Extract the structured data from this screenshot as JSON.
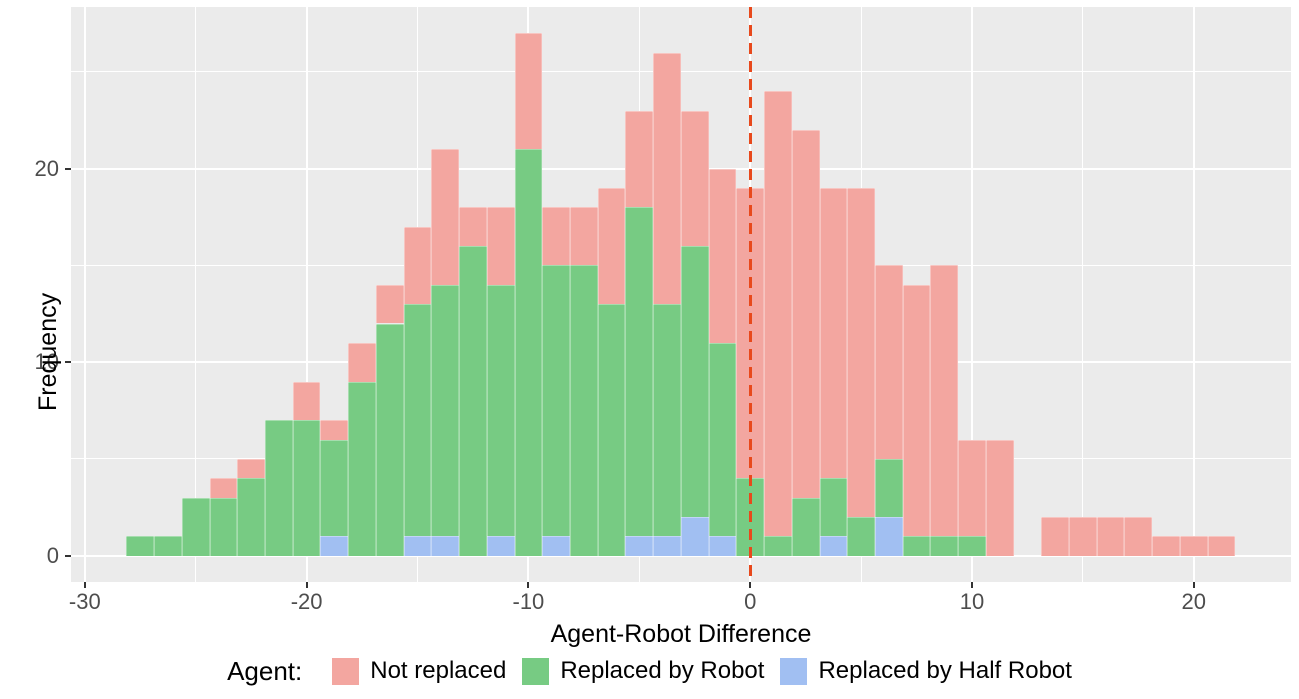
{
  "chart_data": {
    "type": "bar",
    "subtype": "stacked-histogram",
    "xlabel": "Agent-Robot Difference",
    "ylabel": "Frequency",
    "x_ticks": [
      -30,
      -20,
      -10,
      0,
      10,
      20
    ],
    "x_minor_ticks": [
      -25,
      -15,
      -5,
      5,
      15
    ],
    "y_ticks": [
      0,
      10,
      20
    ],
    "y_minor_ticks": [
      5,
      15,
      25
    ],
    "xlim": [
      -30.6,
      24.4
    ],
    "ylim": [
      -1.35,
      28.35
    ],
    "bin_width": 1.25,
    "grid": true,
    "legend_position": "bottom",
    "reference_line": {
      "x": 0,
      "style": "dashed",
      "color": "#E8491C"
    },
    "legend": {
      "title": "Agent:",
      "entries": [
        {
          "key": "not_replaced",
          "label": "Not replaced",
          "color": "#F3A6A0"
        },
        {
          "key": "robot",
          "label": "Replaced by Robot",
          "color": "#77CB83"
        },
        {
          "key": "half_robot",
          "label": "Replaced by Half Robot",
          "color": "#A1BFF2"
        }
      ]
    },
    "stack_order_bottom_to_top": [
      "half_robot",
      "robot",
      "not_replaced"
    ],
    "bins": [
      {
        "center": -27.5,
        "half_robot": 0,
        "robot": 1,
        "not_replaced": 0
      },
      {
        "center": -26.25,
        "half_robot": 0,
        "robot": 1,
        "not_replaced": 0
      },
      {
        "center": -25,
        "half_robot": 0,
        "robot": 3,
        "not_replaced": 0
      },
      {
        "center": -23.75,
        "half_robot": 0,
        "robot": 3,
        "not_replaced": 1
      },
      {
        "center": -22.5,
        "half_robot": 0,
        "robot": 4,
        "not_replaced": 1
      },
      {
        "center": -21.25,
        "half_robot": 0,
        "robot": 7,
        "not_replaced": 0
      },
      {
        "center": -20,
        "half_robot": 0,
        "robot": 7,
        "not_replaced": 2
      },
      {
        "center": -18.75,
        "half_robot": 1,
        "robot": 5,
        "not_replaced": 1
      },
      {
        "center": -17.5,
        "half_robot": 0,
        "robot": 9,
        "not_replaced": 2
      },
      {
        "center": -16.25,
        "half_robot": 0,
        "robot": 12,
        "not_replaced": 2
      },
      {
        "center": -15,
        "half_robot": 1,
        "robot": 12,
        "not_replaced": 4
      },
      {
        "center": -13.75,
        "half_robot": 1,
        "robot": 13,
        "not_replaced": 7
      },
      {
        "center": -12.5,
        "half_robot": 0,
        "robot": 16,
        "not_replaced": 2
      },
      {
        "center": -11.25,
        "half_robot": 1,
        "robot": 13,
        "not_replaced": 4
      },
      {
        "center": -10,
        "half_robot": 0,
        "robot": 21,
        "not_replaced": 6
      },
      {
        "center": -8.75,
        "half_robot": 1,
        "robot": 14,
        "not_replaced": 3
      },
      {
        "center": -7.5,
        "half_robot": 0,
        "robot": 15,
        "not_replaced": 3
      },
      {
        "center": -6.25,
        "half_robot": 0,
        "robot": 13,
        "not_replaced": 6
      },
      {
        "center": -5,
        "half_robot": 1,
        "robot": 17,
        "not_replaced": 5
      },
      {
        "center": -3.75,
        "half_robot": 1,
        "robot": 12,
        "not_replaced": 13
      },
      {
        "center": -2.5,
        "half_robot": 2,
        "robot": 14,
        "not_replaced": 7
      },
      {
        "center": -1.25,
        "half_robot": 1,
        "robot": 10,
        "not_replaced": 9
      },
      {
        "center": 0,
        "half_robot": 0,
        "robot": 4,
        "not_replaced": 15
      },
      {
        "center": 1.25,
        "half_robot": 0,
        "robot": 1,
        "not_replaced": 23
      },
      {
        "center": 2.5,
        "half_robot": 0,
        "robot": 3,
        "not_replaced": 19
      },
      {
        "center": 3.75,
        "half_robot": 1,
        "robot": 3,
        "not_replaced": 15
      },
      {
        "center": 5,
        "half_robot": 0,
        "robot": 2,
        "not_replaced": 17
      },
      {
        "center": 6.25,
        "half_robot": 2,
        "robot": 3,
        "not_replaced": 10
      },
      {
        "center": 7.5,
        "half_robot": 0,
        "robot": 1,
        "not_replaced": 13
      },
      {
        "center": 8.75,
        "half_robot": 0,
        "robot": 1,
        "not_replaced": 14
      },
      {
        "center": 10,
        "half_robot": 0,
        "robot": 1,
        "not_replaced": 5
      },
      {
        "center": 11.25,
        "half_robot": 0,
        "robot": 0,
        "not_replaced": 6
      },
      {
        "center": 13.75,
        "half_robot": 0,
        "robot": 0,
        "not_replaced": 2
      },
      {
        "center": 15,
        "half_robot": 0,
        "robot": 0,
        "not_replaced": 2
      },
      {
        "center": 16.25,
        "half_robot": 0,
        "robot": 0,
        "not_replaced": 2
      },
      {
        "center": 17.5,
        "half_robot": 0,
        "robot": 0,
        "not_replaced": 2
      },
      {
        "center": 18.75,
        "half_robot": 0,
        "robot": 0,
        "not_replaced": 1
      },
      {
        "center": 20,
        "half_robot": 0,
        "robot": 0,
        "not_replaced": 1
      },
      {
        "center": 21.25,
        "half_robot": 0,
        "robot": 0,
        "not_replaced": 1
      }
    ]
  },
  "colors": {
    "panel_background": "#EBEBEB",
    "gridline": "#FFFFFF",
    "tick_text": "#4D4D4D",
    "axis_title_text": "#000000",
    "not_replaced": "#F3A6A0",
    "robot": "#77CB83",
    "half_robot": "#A1BFF2",
    "reference_line": "#E8491C"
  }
}
